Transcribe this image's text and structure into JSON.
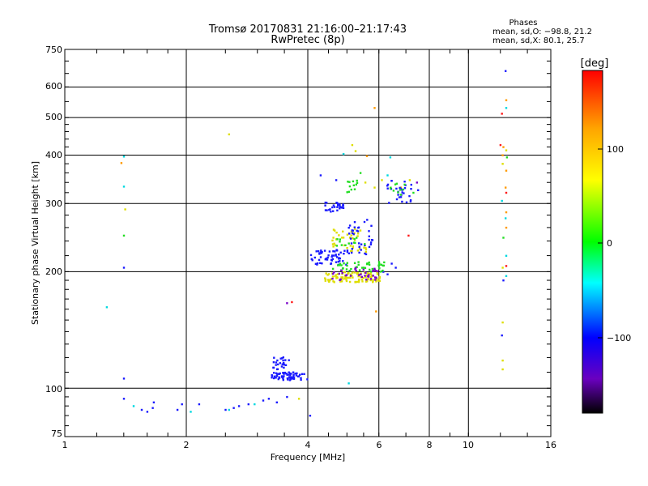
{
  "title_line1": "Tromsø 20170831 21:16:00–21:17:43",
  "title_line2": "RwPretec (8p)",
  "phases": {
    "heading": "Phases",
    "line_o": "mean, sd,O: −98.8, 21.2",
    "line_x": "mean, sd,X:  80.1, 25.7"
  },
  "colorbar": {
    "label": "[deg]",
    "ticks": [
      "100",
      "0",
      "−100"
    ],
    "colors": [
      "#ff0000",
      "#ffa500",
      "#ffff00",
      "#00ff00",
      "#00ffff",
      "#0000ff",
      "#7f00ff",
      "#000000"
    ]
  },
  "chart_data": {
    "type": "scatter",
    "xlabel": "Frequency [MHz]",
    "ylabel": "Stationary phase Virtual Height [km]",
    "x_scale": "log",
    "y_scale": "log",
    "xlim": [
      1,
      16
    ],
    "ylim": [
      75,
      750
    ],
    "x_ticks": [
      "1",
      "2",
      "4",
      "6",
      "8",
      "10",
      "16"
    ],
    "y_ticks": [
      "750",
      "600",
      "500",
      "400",
      "300",
      "200",
      "100",
      "75"
    ],
    "x_grid": [
      2,
      4,
      6,
      8,
      10
    ],
    "y_grid": [
      100,
      200,
      300,
      400,
      500,
      600
    ],
    "grid": true,
    "color_scale": "phase [deg]",
    "points": [
      {
        "f": 1.27,
        "h": 162,
        "c": "cyan"
      },
      {
        "f": 1.4,
        "h": 397,
        "c": "cyan"
      },
      {
        "f": 1.38,
        "h": 382,
        "c": "orange"
      },
      {
        "f": 1.4,
        "h": 332,
        "c": "cyan"
      },
      {
        "f": 1.41,
        "h": 290,
        "c": "yellow"
      },
      {
        "f": 1.4,
        "h": 248,
        "c": "green"
      },
      {
        "f": 1.4,
        "h": 205,
        "c": "blue"
      },
      {
        "f": 1.4,
        "h": 106,
        "c": "blue"
      },
      {
        "f": 1.4,
        "h": 94,
        "c": "blue"
      },
      {
        "f": 1.48,
        "h": 90,
        "c": "cyan"
      },
      {
        "f": 1.55,
        "h": 88,
        "c": "blue"
      },
      {
        "f": 1.6,
        "h": 87,
        "c": "blue"
      },
      {
        "f": 1.65,
        "h": 89,
        "c": "blue"
      },
      {
        "f": 1.66,
        "h": 92,
        "c": "blue"
      },
      {
        "f": 1.9,
        "h": 88,
        "c": "blue"
      },
      {
        "f": 1.95,
        "h": 91,
        "c": "blue"
      },
      {
        "f": 2.05,
        "h": 87,
        "c": "cyan"
      },
      {
        "f": 2.15,
        "h": 91,
        "c": "blue"
      },
      {
        "f": 2.5,
        "h": 88,
        "c": "blue"
      },
      {
        "f": 2.55,
        "h": 88,
        "c": "cyan"
      },
      {
        "f": 2.62,
        "h": 89,
        "c": "blue"
      },
      {
        "f": 2.7,
        "h": 90,
        "c": "blue"
      },
      {
        "f": 2.85,
        "h": 91,
        "c": "blue"
      },
      {
        "f": 2.95,
        "h": 91,
        "c": "cyan"
      },
      {
        "f": 3.1,
        "h": 93,
        "c": "blue"
      },
      {
        "f": 3.2,
        "h": 94,
        "c": "blue"
      },
      {
        "f": 3.35,
        "h": 92,
        "c": "blue"
      },
      {
        "f": 3.55,
        "h": 95,
        "c": "blue"
      },
      {
        "f": 3.8,
        "h": 94,
        "c": "yellow"
      },
      {
        "f": 4.05,
        "h": 85,
        "c": "blue"
      },
      {
        "f": 2.55,
        "h": 453,
        "c": "yellow"
      },
      {
        "f": 3.55,
        "h": 166,
        "c": "purple"
      },
      {
        "f": 3.65,
        "h": 167,
        "c": "red"
      },
      {
        "f": 5.05,
        "h": 103,
        "c": "cyan"
      },
      {
        "f": 6.15,
        "h": 200,
        "c": "blue"
      },
      {
        "f": 6.3,
        "h": 197,
        "c": "blue"
      },
      {
        "f": 6.45,
        "h": 210,
        "c": "blue"
      },
      {
        "f": 6.6,
        "h": 205,
        "c": "blue"
      },
      {
        "f": 5.85,
        "h": 530,
        "c": "orange"
      },
      {
        "f": 5.9,
        "h": 158,
        "c": "orange"
      },
      {
        "f": 5.6,
        "h": 398,
        "c": "orange"
      },
      {
        "f": 4.9,
        "h": 403,
        "c": "cyan"
      },
      {
        "f": 5.15,
        "h": 425,
        "c": "yellow"
      },
      {
        "f": 5.25,
        "h": 410,
        "c": "yellow"
      },
      {
        "f": 4.3,
        "h": 355,
        "c": "blue"
      },
      {
        "f": 4.7,
        "h": 345,
        "c": "blue"
      },
      {
        "f": 5.4,
        "h": 360,
        "c": "green"
      },
      {
        "f": 5.55,
        "h": 340,
        "c": "yellow"
      },
      {
        "f": 5.85,
        "h": 330,
        "c": "yellow"
      },
      {
        "f": 6.1,
        "h": 345,
        "c": "yellow"
      },
      {
        "f": 6.3,
        "h": 355,
        "c": "cyan"
      },
      {
        "f": 6.4,
        "h": 395,
        "c": "cyan"
      },
      {
        "f": 6.8,
        "h": 330,
        "c": "orange"
      },
      {
        "f": 7.15,
        "h": 345,
        "c": "yellow"
      },
      {
        "f": 7.45,
        "h": 340,
        "c": "purple"
      },
      {
        "f": 7.3,
        "h": 320,
        "c": "green"
      },
      {
        "f": 7.5,
        "h": 325,
        "c": "blue"
      },
      {
        "f": 7.1,
        "h": 248,
        "c": "red"
      },
      {
        "f": 12.35,
        "h": 660,
        "c": "blue"
      },
      {
        "f": 12.4,
        "h": 555,
        "c": "orange"
      },
      {
        "f": 12.1,
        "h": 512,
        "c": "red"
      },
      {
        "f": 12.4,
        "h": 530,
        "c": "cyan"
      },
      {
        "f": 12.0,
        "h": 425,
        "c": "red"
      },
      {
        "f": 12.2,
        "h": 420,
        "c": "orange"
      },
      {
        "f": 12.4,
        "h": 412,
        "c": "yellow"
      },
      {
        "f": 12.15,
        "h": 400,
        "c": "orange"
      },
      {
        "f": 12.45,
        "h": 395,
        "c": "green"
      },
      {
        "f": 12.15,
        "h": 380,
        "c": "yellow"
      },
      {
        "f": 12.4,
        "h": 365,
        "c": "orange"
      },
      {
        "f": 12.35,
        "h": 330,
        "c": "orange"
      },
      {
        "f": 12.4,
        "h": 320,
        "c": "red"
      },
      {
        "f": 12.1,
        "h": 305,
        "c": "cyan"
      },
      {
        "f": 12.4,
        "h": 285,
        "c": "orange"
      },
      {
        "f": 12.35,
        "h": 275,
        "c": "cyan"
      },
      {
        "f": 12.4,
        "h": 260,
        "c": "orange"
      },
      {
        "f": 12.2,
        "h": 245,
        "c": "green"
      },
      {
        "f": 12.4,
        "h": 220,
        "c": "cyan"
      },
      {
        "f": 12.15,
        "h": 205,
        "c": "yellow"
      },
      {
        "f": 12.4,
        "h": 207,
        "c": "red"
      },
      {
        "f": 12.2,
        "h": 190,
        "c": "blue"
      },
      {
        "f": 12.4,
        "h": 195,
        "c": "cyan"
      },
      {
        "f": 12.15,
        "h": 148,
        "c": "yellow"
      },
      {
        "f": 12.1,
        "h": 137,
        "c": "blue"
      },
      {
        "f": 12.15,
        "h": 118,
        "c": "yellow"
      },
      {
        "f": 12.15,
        "h": 112,
        "c": "yellow"
      }
    ],
    "clusters": [
      {
        "f": [
          3.25,
          3.8
        ],
        "h": [
          105,
          110
        ],
        "n": 60,
        "c": "blue"
      },
      {
        "f": [
          3.25,
          3.6
        ],
        "h": [
          112,
          121
        ],
        "n": 24,
        "c": "blue"
      },
      {
        "f": [
          3.8,
          4.0
        ],
        "h": [
          104,
          109
        ],
        "n": 6,
        "c": "blue"
      },
      {
        "f": [
          4.05,
          5.0
        ],
        "h": [
          208,
          228
        ],
        "n": 55,
        "c": "blue"
      },
      {
        "f": [
          4.4,
          4.9
        ],
        "h": [
          286,
          302
        ],
        "n": 28,
        "c": "blue"
      },
      {
        "f": [
          4.4,
          6.1
        ],
        "h": [
          188,
          200
        ],
        "n": 95,
        "c": "yellow"
      },
      {
        "f": [
          4.6,
          6.2
        ],
        "h": [
          200,
          212
        ],
        "n": 45,
        "c": "green"
      },
      {
        "f": [
          4.5,
          6.0
        ],
        "h": [
          190,
          205
        ],
        "n": 35,
        "c": "purple"
      },
      {
        "f": [
          4.6,
          5.7
        ],
        "h": [
          225,
          260
        ],
        "n": 40,
        "c": "yellow"
      },
      {
        "f": [
          5.0,
          5.8
        ],
        "h": [
          222,
          275
        ],
        "n": 40,
        "c": "blue"
      },
      {
        "f": [
          4.7,
          5.6
        ],
        "h": [
          232,
          246
        ],
        "n": 12,
        "c": "green"
      },
      {
        "f": [
          5.0,
          5.3
        ],
        "h": [
          320,
          345
        ],
        "n": 12,
        "c": "green"
      },
      {
        "f": [
          6.25,
          7.25
        ],
        "h": [
          300,
          345
        ],
        "n": 30,
        "c": "blue"
      },
      {
        "f": [
          6.4,
          7.0
        ],
        "h": [
          315,
          340
        ],
        "n": 10,
        "c": "green"
      }
    ]
  }
}
